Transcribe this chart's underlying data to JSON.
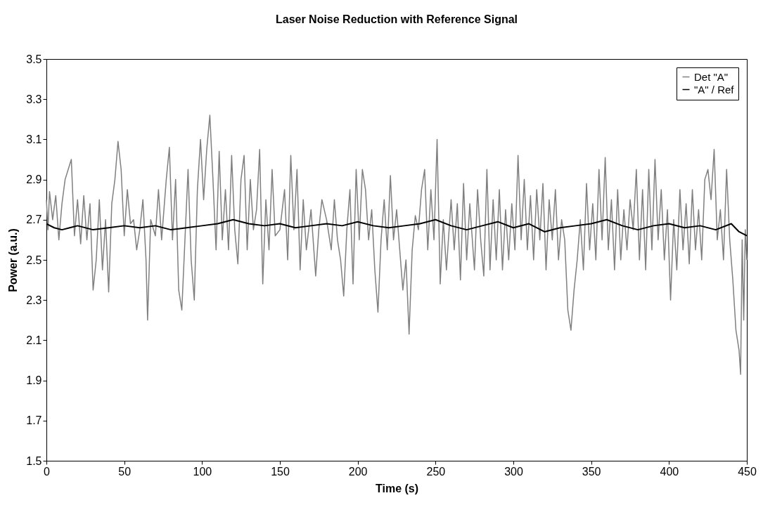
{
  "chart_data": {
    "type": "line",
    "title": "Laser Noise Reduction with Reference Signal",
    "xlabel": "Time (s)",
    "ylabel": "Power (a.u.)",
    "xlim": [
      0,
      450
    ],
    "xticks": [
      0,
      50,
      100,
      150,
      200,
      250,
      300,
      350,
      400,
      450
    ],
    "ylim": [
      1.5,
      3.5
    ],
    "yticks": [
      1.5,
      1.7,
      1.9,
      2.1,
      2.3,
      2.5,
      2.7,
      2.9,
      3.1,
      3.3,
      3.5
    ],
    "grid": false,
    "legend": "top right",
    "marker": "none",
    "line_style": "solid",
    "series": [
      {
        "name": "Det \"A\"",
        "color": "#808080",
        "x": [
          0,
          1,
          2,
          4,
          6,
          8,
          10,
          12,
          14,
          16,
          18,
          20,
          22,
          24,
          26,
          28,
          30,
          32,
          34,
          36,
          38,
          40,
          42,
          44,
          46,
          48,
          50,
          52,
          54,
          56,
          58,
          60,
          62,
          64,
          65,
          67,
          70,
          72,
          74,
          77,
          79,
          81,
          83,
          85,
          87,
          89,
          91,
          93,
          95,
          97,
          99,
          101,
          103,
          105,
          107,
          109,
          111,
          113,
          115,
          117,
          119,
          121,
          123,
          125,
          127,
          129,
          131,
          133,
          135,
          137,
          139,
          141,
          143,
          145,
          147,
          150,
          153,
          155,
          157,
          159,
          161,
          163,
          165,
          167,
          170,
          173,
          175,
          177,
          180,
          183,
          185,
          187,
          189,
          191,
          193,
          195,
          197,
          199,
          201,
          203,
          205,
          207,
          209,
          211,
          213,
          215,
          217,
          219,
          221,
          223,
          225,
          227,
          229,
          231,
          233,
          235,
          237,
          239,
          241,
          243,
          245,
          247,
          249,
          251,
          253,
          255,
          257,
          260,
          262,
          264,
          266,
          268,
          270,
          272,
          275,
          277,
          279,
          281,
          283,
          285,
          287,
          289,
          291,
          293,
          295,
          297,
          299,
          301,
          303,
          305,
          307,
          309,
          311,
          313,
          315,
          317,
          319,
          321,
          323,
          325,
          327,
          329,
          331,
          333,
          335,
          337,
          339,
          341,
          343,
          345,
          347,
          349,
          351,
          353,
          355,
          357,
          359,
          361,
          363,
          365,
          367,
          369,
          371,
          373,
          375,
          377,
          379,
          381,
          383,
          385,
          387,
          389,
          391,
          393,
          395,
          397,
          399,
          401,
          403,
          405,
          407,
          409,
          411,
          413,
          415,
          417,
          419,
          421,
          423,
          425,
          427,
          429,
          431,
          433,
          435,
          437,
          439,
          441,
          443,
          445,
          446,
          447,
          448,
          449,
          450
        ],
        "values": [
          2.8,
          2.65,
          2.84,
          2.7,
          2.82,
          2.6,
          2.78,
          2.9,
          2.95,
          3.0,
          2.62,
          2.8,
          2.58,
          2.82,
          2.6,
          2.78,
          2.35,
          2.5,
          2.8,
          2.45,
          2.7,
          2.34,
          2.78,
          2.9,
          3.09,
          2.95,
          2.62,
          2.85,
          2.68,
          2.7,
          2.55,
          2.65,
          2.8,
          2.5,
          2.2,
          2.7,
          2.62,
          2.85,
          2.6,
          2.9,
          3.06,
          2.6,
          2.9,
          2.35,
          2.25,
          2.6,
          2.95,
          2.5,
          2.3,
          2.85,
          3.1,
          2.8,
          3.05,
          3.22,
          2.9,
          2.55,
          3.04,
          2.6,
          2.85,
          2.55,
          3.02,
          2.65,
          2.48,
          2.9,
          3.02,
          2.55,
          2.9,
          2.65,
          2.75,
          3.05,
          2.38,
          2.8,
          2.55,
          2.95,
          2.62,
          2.65,
          2.85,
          2.5,
          3.02,
          2.65,
          2.95,
          2.45,
          2.8,
          2.55,
          2.75,
          2.42,
          2.65,
          2.8,
          2.7,
          2.55,
          2.8,
          2.6,
          2.5,
          2.32,
          2.65,
          2.85,
          2.38,
          2.95,
          2.6,
          2.95,
          2.85,
          2.6,
          2.75,
          2.45,
          2.24,
          2.6,
          2.8,
          2.55,
          2.92,
          2.6,
          2.75,
          2.55,
          2.35,
          2.5,
          2.13,
          2.55,
          2.72,
          2.65,
          2.85,
          2.95,
          2.55,
          2.85,
          2.6,
          3.1,
          2.38,
          2.7,
          2.45,
          2.8,
          2.55,
          2.78,
          2.4,
          2.88,
          2.5,
          2.78,
          2.45,
          2.85,
          2.6,
          2.42,
          2.95,
          2.45,
          2.8,
          2.5,
          2.85,
          2.45,
          2.75,
          2.5,
          2.78,
          2.55,
          3.02,
          2.6,
          2.9,
          2.55,
          2.82,
          2.5,
          2.85,
          2.6,
          2.88,
          2.45,
          2.8,
          2.6,
          2.85,
          2.5,
          2.7,
          2.6,
          2.25,
          2.15,
          2.35,
          2.5,
          2.7,
          2.45,
          2.88,
          2.55,
          2.78,
          2.5,
          2.95,
          2.6,
          3.01,
          2.55,
          2.8,
          2.45,
          2.85,
          2.5,
          2.75,
          2.55,
          2.8,
          2.65,
          2.95,
          2.5,
          2.85,
          2.45,
          2.95,
          2.55,
          3.0,
          2.6,
          2.85,
          2.5,
          2.75,
          2.3,
          2.7,
          2.45,
          2.85,
          2.55,
          2.78,
          2.48,
          2.85,
          2.55,
          2.75,
          2.5,
          2.9,
          2.95,
          2.8,
          3.05,
          2.6,
          2.75,
          2.5,
          2.95,
          2.6,
          2.4,
          2.15,
          2.05,
          1.93,
          2.6,
          2.2,
          2.65,
          2.5
        ]
      },
      {
        "name": "\"A\" / Ref",
        "color": "#000000",
        "x": [
          0,
          5,
          10,
          15,
          20,
          30,
          40,
          50,
          60,
          70,
          80,
          90,
          100,
          110,
          120,
          130,
          140,
          150,
          160,
          170,
          180,
          190,
          200,
          210,
          220,
          230,
          240,
          250,
          260,
          270,
          280,
          290,
          300,
          310,
          320,
          330,
          340,
          350,
          360,
          370,
          380,
          390,
          400,
          410,
          420,
          430,
          440,
          445,
          450
        ],
        "values": [
          2.68,
          2.66,
          2.65,
          2.66,
          2.67,
          2.65,
          2.66,
          2.67,
          2.66,
          2.67,
          2.65,
          2.66,
          2.67,
          2.68,
          2.7,
          2.68,
          2.67,
          2.68,
          2.66,
          2.67,
          2.68,
          2.67,
          2.69,
          2.67,
          2.66,
          2.67,
          2.68,
          2.7,
          2.67,
          2.65,
          2.67,
          2.69,
          2.66,
          2.68,
          2.64,
          2.66,
          2.67,
          2.68,
          2.7,
          2.67,
          2.65,
          2.67,
          2.68,
          2.66,
          2.67,
          2.65,
          2.68,
          2.64,
          2.62
        ]
      }
    ]
  }
}
